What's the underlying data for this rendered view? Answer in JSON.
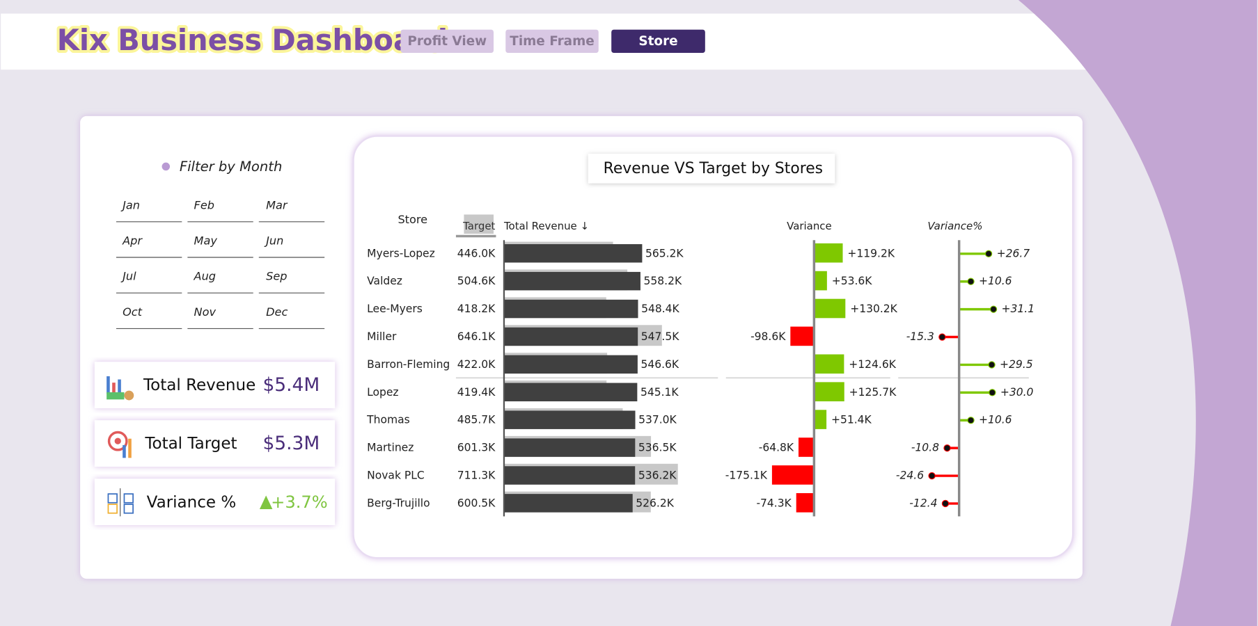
{
  "header": {
    "title": "Kix Business Dashboard",
    "buttons": [
      "Profit View",
      "Time Frame",
      "Store"
    ]
  },
  "filter": {
    "title": "Filter by Month",
    "months": [
      "Jan",
      "Feb",
      "Mar",
      "Apr",
      "May",
      "Jun",
      "Jul",
      "Aug",
      "Sep",
      "Oct",
      "Nov",
      "Dec"
    ]
  },
  "kpis": [
    {
      "label": "Total Revenue",
      "value": "$5.4M"
    },
    {
      "label": "Total Target",
      "value": "$5.3M"
    },
    {
      "label": "Variance %",
      "value": "+3.7%"
    }
  ],
  "chart_data": {
    "type": "table-bar",
    "title": "Revenue VS Target by Stores",
    "category_header": "Store",
    "categories": [
      "Myers-Lopez",
      "Valdez",
      "Lee-Myers",
      "Miller",
      "Barron-Fleming",
      "Lopez",
      "Thomas",
      "Martinez",
      "Novak PLC",
      "Berg-Trujillo"
    ],
    "series": [
      {
        "header": "Target",
        "color": "#c8c8c8",
        "values": [
          446.0,
          504.6,
          418.2,
          646.1,
          422.0,
          419.4,
          485.7,
          601.3,
          711.3,
          600.5
        ],
        "value_labels": [
          "446.0K",
          "504.6K",
          "418.2K",
          "646.1K",
          "422.0K",
          "419.4K",
          "485.7K",
          "601.3K",
          "711.3K",
          "600.5K"
        ]
      },
      {
        "header": "Total Revenue ↓",
        "color": "#404040",
        "values": [
          565.2,
          558.2,
          548.4,
          547.5,
          546.6,
          545.1,
          537.0,
          536.5,
          536.2,
          526.2
        ],
        "value_labels": [
          "565.2K",
          "558.2K",
          "548.4K",
          "547.5K",
          "546.6K",
          "545.1K",
          "537.0K",
          "536.5K",
          "536.2K",
          "526.2K"
        ]
      },
      {
        "header": "Variance",
        "positive_color": "#7fc800",
        "negative_color": "#ff0000",
        "values": [
          119.2,
          53.6,
          130.2,
          -98.6,
          124.6,
          125.7,
          51.4,
          -64.8,
          -175.1,
          -74.3
        ],
        "value_labels": [
          "+119.2K",
          "+53.6K",
          "+130.2K",
          "-98.6K",
          "+124.6K",
          "+125.7K",
          "+51.4K",
          "-64.8K",
          "-175.1K",
          "-74.3K"
        ]
      },
      {
        "header": "Variance%",
        "positive_color": "#7fc800",
        "negative_color": "#ff0000",
        "values": [
          26.7,
          10.6,
          31.1,
          -15.3,
          29.5,
          30.0,
          10.6,
          -10.8,
          -24.6,
          -12.4
        ],
        "value_labels": [
          "+26.7",
          "+10.6",
          "+31.1",
          "-15.3",
          "+29.5",
          "+30.0",
          "+10.6",
          "-10.8",
          "-24.6",
          "-12.4"
        ]
      }
    ]
  }
}
